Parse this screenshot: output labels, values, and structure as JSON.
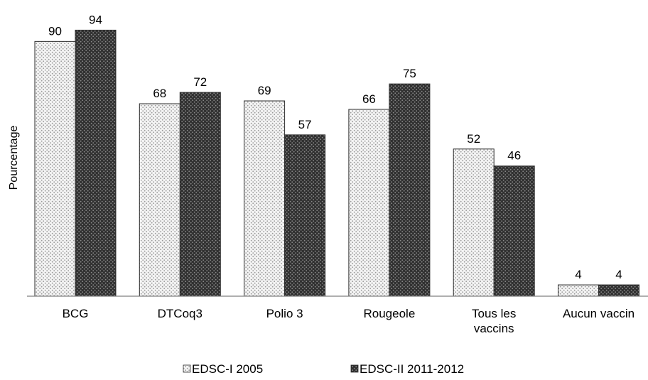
{
  "chart_data": {
    "type": "bar",
    "ylabel": "Pourcentage",
    "xlabel": "",
    "ylim": [
      0,
      100
    ],
    "grid": false,
    "legend_position": "bottom",
    "categories": [
      [
        "BCG"
      ],
      [
        "DTCoq3"
      ],
      [
        "Polio 3"
      ],
      [
        "Rougeole"
      ],
      [
        "Tous les",
        "vaccins"
      ],
      [
        "Aucun vaccin"
      ]
    ],
    "series": [
      {
        "name": "EDSC-I 2005",
        "values": [
          90,
          68,
          69,
          66,
          52,
          4
        ],
        "color": "#f2f2f2",
        "pattern": "light-dots"
      },
      {
        "name": "EDSC-II 2011-2012",
        "values": [
          94,
          72,
          57,
          75,
          46,
          4
        ],
        "color": "#3a3a3a",
        "pattern": "dark-dots"
      }
    ]
  }
}
